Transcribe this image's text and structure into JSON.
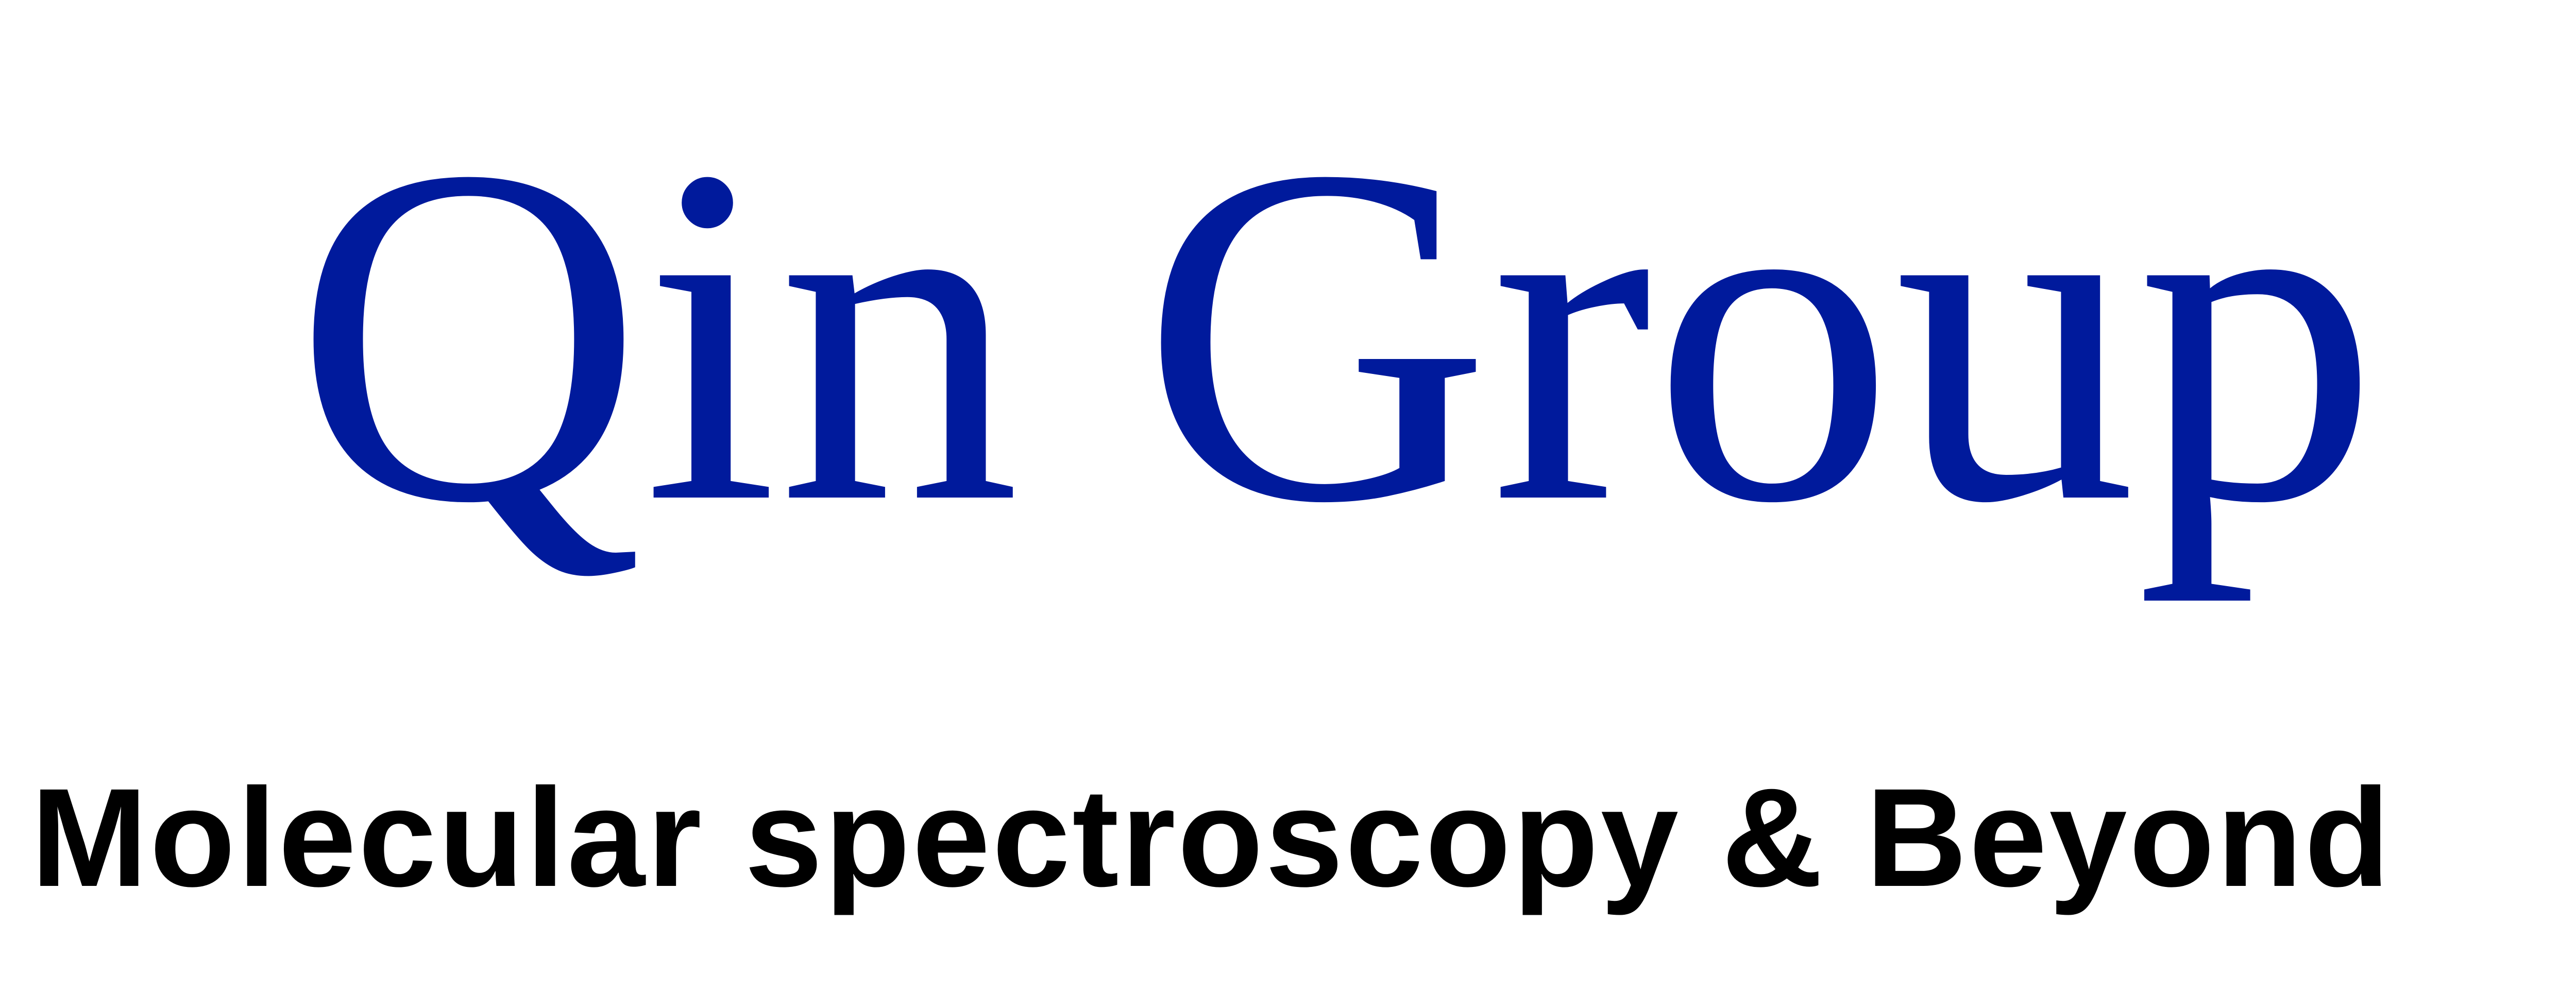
{
  "logo": {
    "title": "Qin Group",
    "subtitle": "Molecular spectroscopy & Beyond",
    "colors": {
      "title": "#001a9c",
      "subtitle": "#000000",
      "background": "#ffffff"
    }
  }
}
